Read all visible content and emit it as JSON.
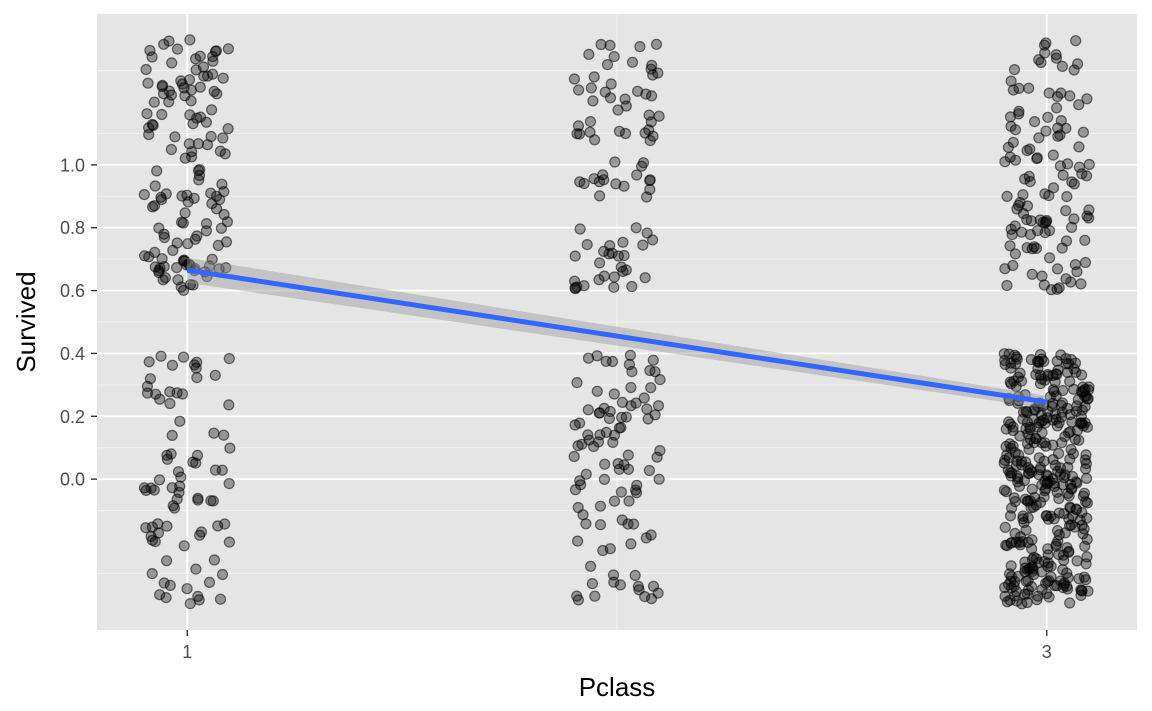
{
  "chart_data": {
    "type": "scatter",
    "title": "",
    "xlabel": "Pclass",
    "ylabel": "Survived",
    "xlim": [
      0.79,
      3.21
    ],
    "ylim": [
      -0.48,
      1.48
    ],
    "x_ticks": [
      1,
      3
    ],
    "x_tick_labels": [
      "1",
      "3"
    ],
    "y_ticks": [
      0.0,
      0.2,
      0.4,
      0.6,
      0.8,
      1.0
    ],
    "y_tick_labels": [
      "0.0",
      "0.2",
      "0.4",
      "0.6",
      "0.8",
      "1.0"
    ],
    "grid": true,
    "legend": "none",
    "jitter": {
      "width": 0.1,
      "height": 0.4
    },
    "series": [
      {
        "kind": "points",
        "groups": [
          {
            "x": 1,
            "y": 1,
            "count": 136
          },
          {
            "x": 1,
            "y": 0,
            "count": 80
          },
          {
            "x": 2,
            "y": 1,
            "count": 87
          },
          {
            "x": 2,
            "y": 0,
            "count": 97
          },
          {
            "x": 3,
            "y": 1,
            "count": 119
          },
          {
            "x": 3,
            "y": 0,
            "count": 372
          }
        ]
      },
      {
        "kind": "smooth",
        "method": "lm",
        "x": [
          1,
          3
        ],
        "y": [
          0.665,
          0.245
        ],
        "ci_low": [
          0.625,
          0.225
        ],
        "ci_high": [
          0.705,
          0.265
        ],
        "color": "#3366ff"
      }
    ]
  }
}
